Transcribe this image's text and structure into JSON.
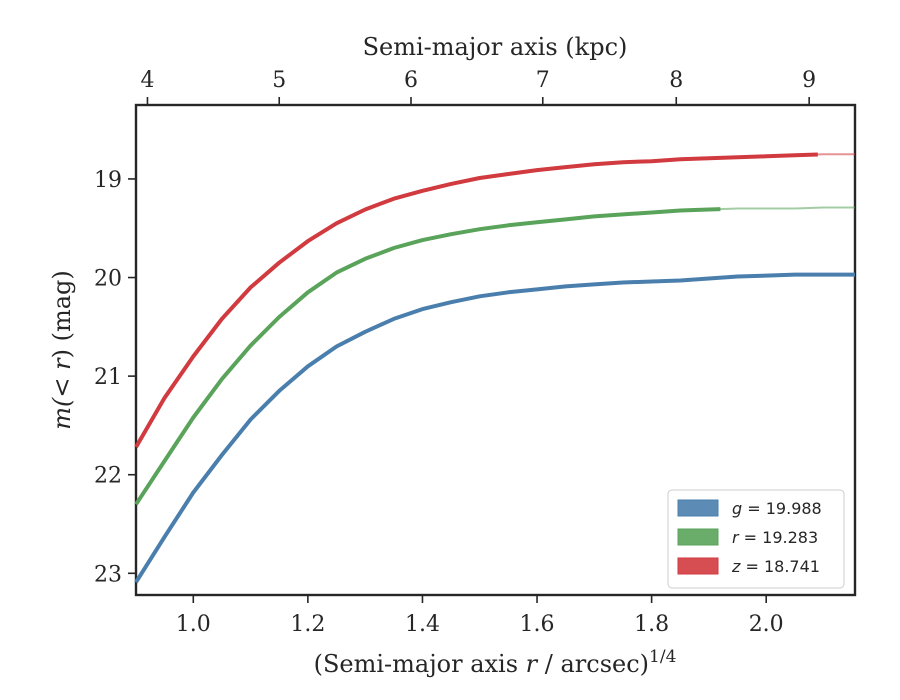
{
  "chart_data": {
    "type": "line",
    "xlabel": "(Semi-major axis r / arcsec)^1/4",
    "xlabel_parts": {
      "prefix": "(Semi-major axis ",
      "var": "r",
      "middle": " / arcsec)",
      "sup": "1/4"
    },
    "ylabel": "m(<r) (mag)",
    "ylabel_parts": {
      "open": "m(",
      "var": "< r",
      "close": ") (mag)"
    },
    "top_xlabel": "Semi-major axis (kpc)",
    "xlim": [
      0.9,
      2.155
    ],
    "ylim": [
      23.22,
      18.25
    ],
    "y_inverted": true,
    "x_ticks": [
      1.0,
      1.2,
      1.4,
      1.6,
      1.8,
      2.0
    ],
    "x_tick_labels": [
      "1.0",
      "1.2",
      "1.4",
      "1.6",
      "1.8",
      "2.0"
    ],
    "y_ticks": [
      19,
      20,
      21,
      22,
      23
    ],
    "y_tick_labels": [
      "19",
      "20",
      "21",
      "22",
      "23"
    ],
    "top_ticks_kpc": [
      4,
      5,
      6,
      7,
      8,
      9
    ],
    "top_tick_labels": [
      "4",
      "5",
      "6",
      "7",
      "8",
      "9"
    ],
    "top_tick_positions_x": [
      0.92,
      1.15,
      1.38,
      1.61,
      1.843,
      2.075
    ],
    "grid": false,
    "legend_position": "lower-right",
    "series": [
      {
        "name": "g = 19.988",
        "legend_var": "g",
        "legend_value": "= 19.988",
        "color": "#4a7fad",
        "x": [
          0.9,
          0.95,
          1.0,
          1.05,
          1.1,
          1.15,
          1.2,
          1.25,
          1.3,
          1.35,
          1.4,
          1.45,
          1.5,
          1.55,
          1.6,
          1.65,
          1.7,
          1.75,
          1.8,
          1.85,
          1.9,
          1.95,
          2.0,
          2.05,
          2.1,
          2.155
        ],
        "y": [
          23.09,
          22.63,
          22.18,
          21.8,
          21.44,
          21.15,
          20.9,
          20.7,
          20.55,
          20.42,
          20.32,
          20.25,
          20.19,
          20.15,
          20.12,
          20.09,
          20.07,
          20.05,
          20.04,
          20.03,
          20.01,
          19.99,
          19.98,
          19.97,
          19.97,
          19.97
        ],
        "solid_until": 2.155
      },
      {
        "name": "r = 19.283",
        "legend_var": "r",
        "legend_value": "= 19.283",
        "color": "#5aa35a",
        "x": [
          0.9,
          0.95,
          1.0,
          1.05,
          1.1,
          1.15,
          1.2,
          1.25,
          1.3,
          1.35,
          1.4,
          1.45,
          1.5,
          1.55,
          1.6,
          1.65,
          1.7,
          1.75,
          1.8,
          1.85,
          1.9,
          1.95,
          2.0,
          2.05,
          2.1,
          2.155
        ],
        "y": [
          22.3,
          21.86,
          21.42,
          21.03,
          20.69,
          20.4,
          20.15,
          19.95,
          19.81,
          19.7,
          19.62,
          19.56,
          19.51,
          19.47,
          19.44,
          19.41,
          19.38,
          19.36,
          19.34,
          19.32,
          19.31,
          19.3,
          19.3,
          19.3,
          19.29,
          19.29
        ],
        "solid_until": 1.92
      },
      {
        "name": "z = 18.741",
        "legend_var": "z",
        "legend_value": "= 18.741",
        "color": "#d13a3f",
        "x": [
          0.9,
          0.95,
          1.0,
          1.05,
          1.1,
          1.15,
          1.2,
          1.25,
          1.3,
          1.35,
          1.4,
          1.45,
          1.5,
          1.55,
          1.6,
          1.65,
          1.7,
          1.75,
          1.8,
          1.85,
          1.9,
          1.95,
          2.0,
          2.05,
          2.1,
          2.155
        ],
        "y": [
          21.72,
          21.22,
          20.8,
          20.42,
          20.1,
          19.85,
          19.63,
          19.45,
          19.31,
          19.2,
          19.12,
          19.05,
          18.99,
          18.95,
          18.91,
          18.88,
          18.85,
          18.83,
          18.82,
          18.8,
          18.79,
          18.78,
          18.77,
          18.76,
          18.75,
          18.75
        ],
        "solid_until": 2.09
      }
    ]
  }
}
